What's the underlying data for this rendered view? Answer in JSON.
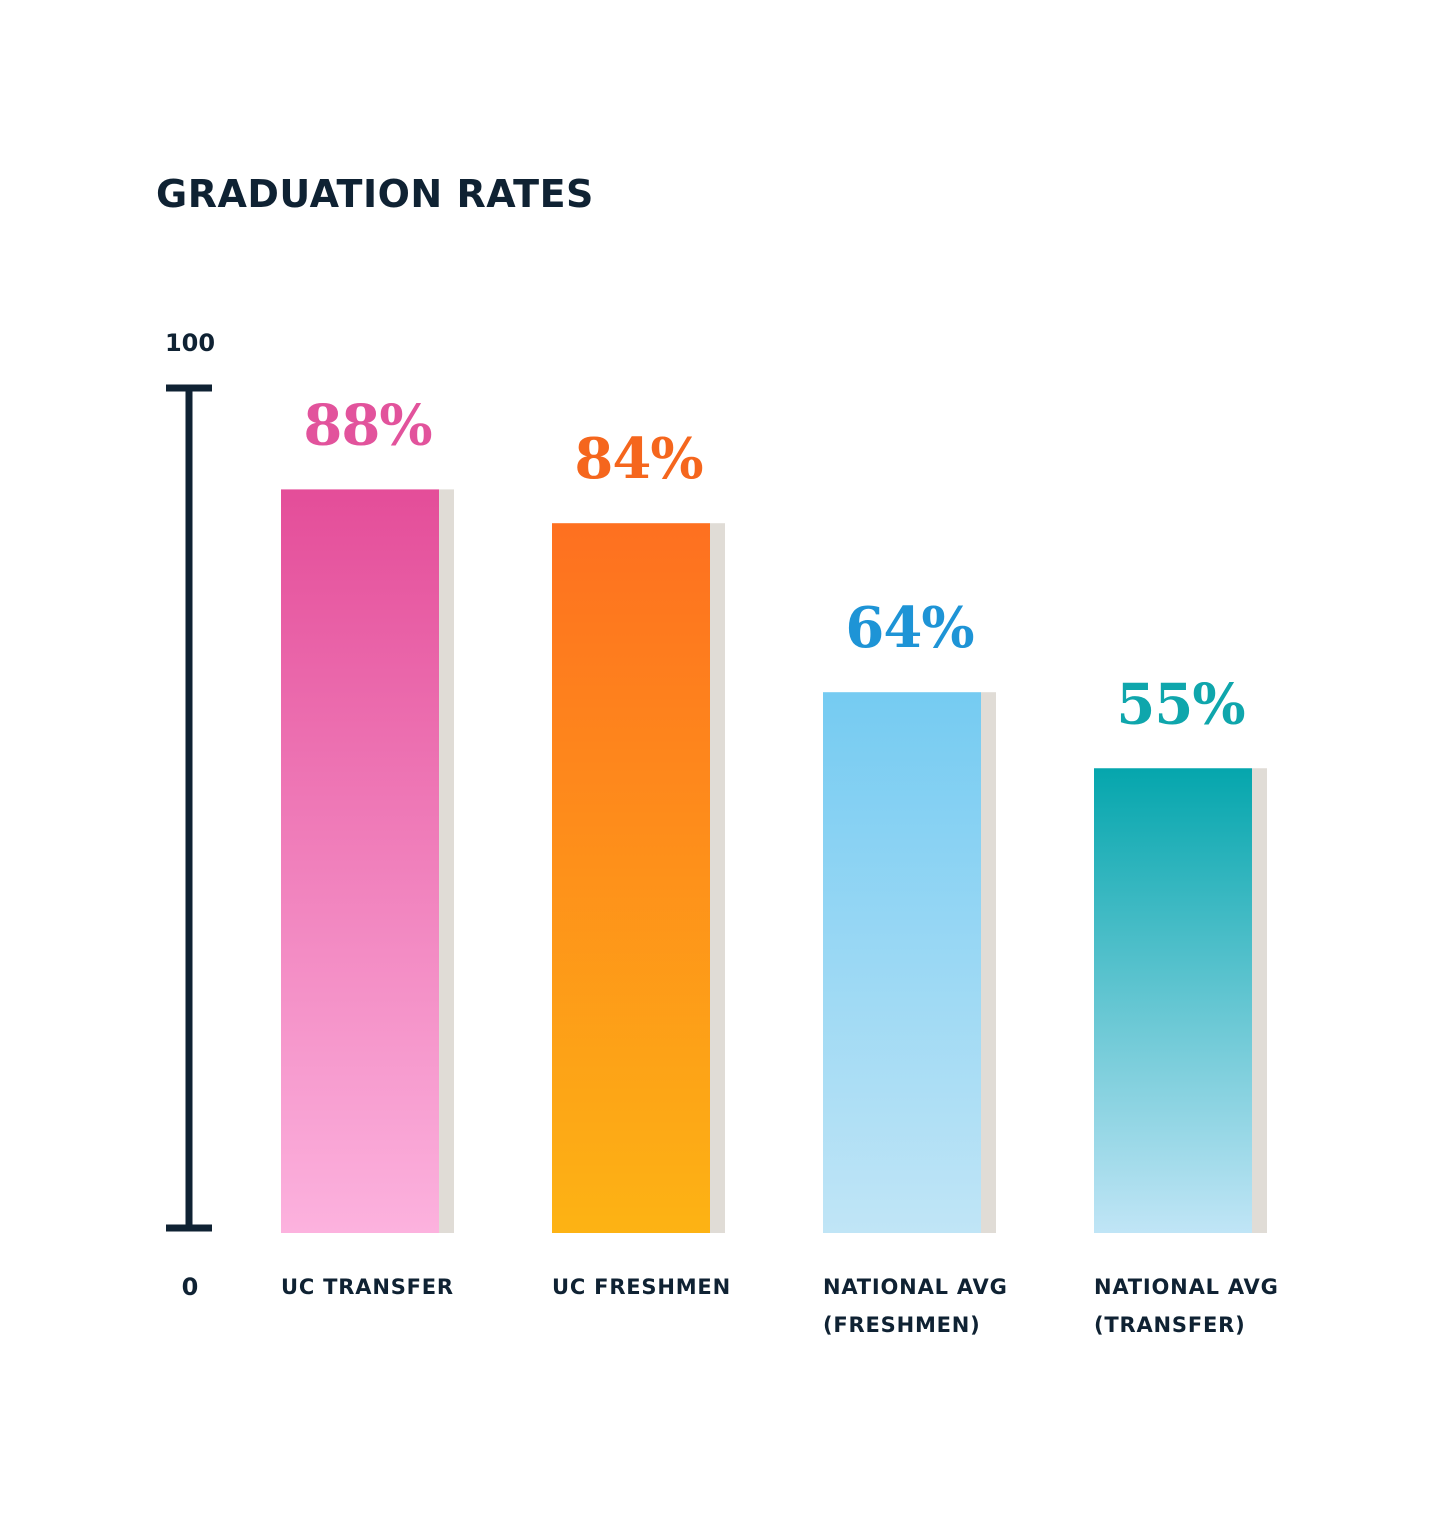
{
  "chart_data": {
    "type": "bar",
    "title": "GRADUATION RATES",
    "xlabel": "",
    "ylabel": "",
    "ylim": [
      0,
      100
    ],
    "y_ticks": [
      "0",
      "100"
    ],
    "grid": false,
    "legend": "none",
    "categories": [
      [
        "UC TRANSFER"
      ],
      [
        "UC FRESHMEN"
      ],
      [
        "NATIONAL AVG",
        "(FRESHMEN)"
      ],
      [
        "NATIONAL AVG",
        "(TRANSFER)"
      ]
    ],
    "values": [
      88,
      84,
      64,
      55
    ],
    "data_labels": [
      "88%",
      "84%",
      "64%",
      "55%"
    ],
    "colors": [
      {
        "top": "#e44d99",
        "bottom": "#fcb2de",
        "label": "#e2539c"
      },
      {
        "top": "#fe7020",
        "bottom": "#fdb314",
        "label": "#f5661d"
      },
      {
        "top": "#75cbf2",
        "bottom": "#c0e5f6",
        "label": "#1e94d6"
      },
      {
        "top": "#05a6ad",
        "bottom": "#c0e5f6",
        "label": "#0fa6ac"
      }
    ],
    "shadow_color": "#e0dcd6",
    "axis_color": "#0f2233"
  }
}
